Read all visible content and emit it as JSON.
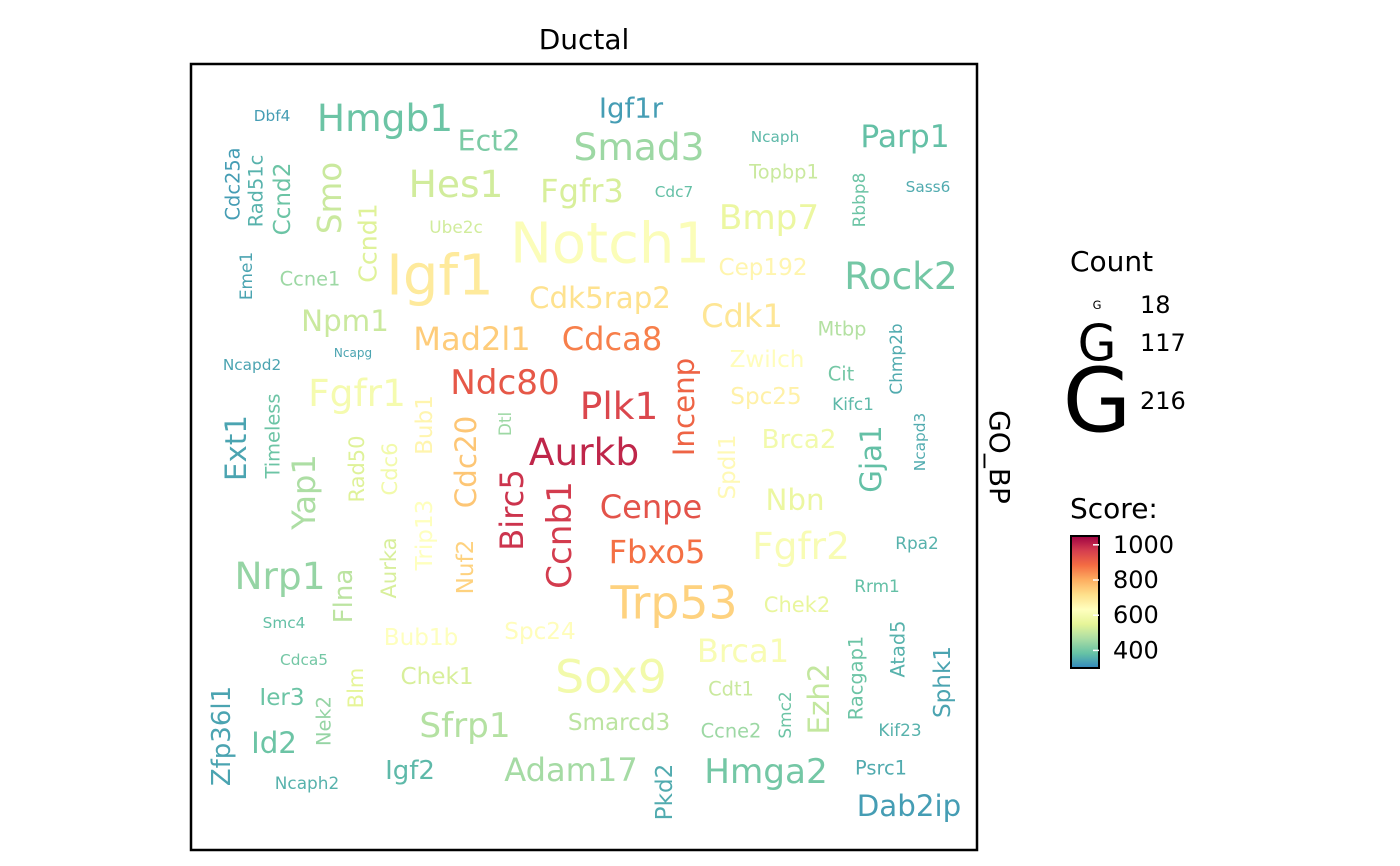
{
  "chart_data": {
    "type": "wordcloud",
    "panel_title": "Ductal",
    "strip_label": "GO_BP",
    "legend_count": {
      "title": "Count",
      "glyph": "G",
      "entries": [
        {
          "label": "18",
          "value": 18
        },
        {
          "label": "117",
          "value": 117
        },
        {
          "label": "216",
          "value": 216
        }
      ]
    },
    "legend_score": {
      "title": "Score:",
      "range": [
        300,
        1050
      ],
      "ticks": [
        {
          "label": "1000",
          "value": 1000
        },
        {
          "label": "800",
          "value": 800
        },
        {
          "label": "600",
          "value": 600
        },
        {
          "label": "400",
          "value": 400
        }
      ],
      "colors": [
        "#3288bd",
        "#66c2a5",
        "#abdda4",
        "#e6f598",
        "#ffffbf",
        "#fee08b",
        "#fdae61",
        "#f46d43",
        "#d53e4f",
        "#9e0142"
      ]
    },
    "words": [
      {
        "text": "Dbf4",
        "count": 26,
        "score": 330
      },
      {
        "text": "Hmgb1",
        "count": 80,
        "score": 390
      },
      {
        "text": "Igf1r",
        "count": 56,
        "score": 330
      },
      {
        "text": "Ect2",
        "count": 58,
        "score": 410
      },
      {
        "text": "Smad3",
        "count": 80,
        "score": 450
      },
      {
        "text": "Ncaph",
        "count": 26,
        "score": 370
      },
      {
        "text": "Parp1",
        "count": 65,
        "score": 380
      },
      {
        "text": "Cdc25a",
        "count": 36,
        "score": 330
      },
      {
        "text": "Rad51c",
        "count": 36,
        "score": 360
      },
      {
        "text": "Ccnd2",
        "count": 45,
        "score": 390
      },
      {
        "text": "Smo",
        "count": 68,
        "score": 510
      },
      {
        "text": "Hes1",
        "count": 80,
        "score": 520
      },
      {
        "text": "Fgfr3",
        "count": 67,
        "score": 530
      },
      {
        "text": "Cdc7",
        "count": 26,
        "score": 380
      },
      {
        "text": "Topbp1",
        "count": 36,
        "score": 510
      },
      {
        "text": "Sass6",
        "count": 26,
        "score": 350
      },
      {
        "text": "Ccnd1",
        "count": 50,
        "score": 540
      },
      {
        "text": "Rbbp8",
        "count": 30,
        "score": 390
      },
      {
        "text": "Bmp7",
        "count": 72,
        "score": 570
      },
      {
        "text": "Ube2c",
        "count": 30,
        "score": 520
      },
      {
        "text": "Notch1",
        "count": 125,
        "score": 620
      },
      {
        "text": "Eme1",
        "count": 30,
        "score": 340
      },
      {
        "text": "Igf1",
        "count": 125,
        "score": 690
      },
      {
        "text": "Cep192",
        "count": 45,
        "score": 660
      },
      {
        "text": "Rock2",
        "count": 80,
        "score": 400
      },
      {
        "text": "Ccne1",
        "count": 36,
        "score": 450
      },
      {
        "text": "Cdk5rap2",
        "count": 60,
        "score": 710
      },
      {
        "text": "Npm1",
        "count": 60,
        "score": 510
      },
      {
        "text": "Cdk1",
        "count": 67,
        "score": 700
      },
      {
        "text": "Mtbp",
        "count": 36,
        "score": 480
      },
      {
        "text": "Mad2l1",
        "count": 67,
        "score": 750
      },
      {
        "text": "Cdca8",
        "count": 67,
        "score": 860
      },
      {
        "text": "Ncapd2",
        "count": 26,
        "score": 340
      },
      {
        "text": "Ncapg",
        "count": 18,
        "score": 340
      },
      {
        "text": "Zwilch",
        "count": 45,
        "score": 640
      },
      {
        "text": "Chmp2b",
        "count": 30,
        "score": 350
      },
      {
        "text": "Cit",
        "count": 36,
        "score": 400
      },
      {
        "text": "Ndc80",
        "count": 72,
        "score": 920
      },
      {
        "text": "Fgfr1",
        "count": 80,
        "score": 600
      },
      {
        "text": "Incenp",
        "count": 60,
        "score": 900
      },
      {
        "text": "Plk1",
        "count": 80,
        "score": 950
      },
      {
        "text": "Spc25",
        "count": 45,
        "score": 670
      },
      {
        "text": "Kifc1",
        "count": 30,
        "score": 370
      },
      {
        "text": "Ext1",
        "count": 60,
        "score": 340
      },
      {
        "text": "Timeless",
        "count": 36,
        "score": 390
      },
      {
        "text": "Rad50",
        "count": 40,
        "score": 540
      },
      {
        "text": "Cdc6",
        "count": 40,
        "score": 590
      },
      {
        "text": "Trip13",
        "count": 45,
        "score": 630
      },
      {
        "text": "Bub1",
        "count": 45,
        "score": 660
      },
      {
        "text": "Cdc20",
        "count": 60,
        "score": 760
      },
      {
        "text": "Dtl",
        "count": 30,
        "score": 450
      },
      {
        "text": "Aurkb",
        "count": 80,
        "score": 1000
      },
      {
        "text": "Brca2",
        "count": 52,
        "score": 590
      },
      {
        "text": "Ncapd3",
        "count": 26,
        "score": 350
      },
      {
        "text": "Gja1",
        "count": 60,
        "score": 380
      },
      {
        "text": "Yap1",
        "count": 67,
        "score": 470
      },
      {
        "text": "Spdl1",
        "count": 45,
        "score": 650
      },
      {
        "text": "Nbn",
        "count": 60,
        "score": 570
      },
      {
        "text": "Birc5",
        "count": 67,
        "score": 980
      },
      {
        "text": "Cenpe",
        "count": 67,
        "score": 930
      },
      {
        "text": "Ccnb1",
        "count": 72,
        "score": 970
      },
      {
        "text": "Fgfr2",
        "count": 80,
        "score": 610
      },
      {
        "text": "Aurka",
        "count": 40,
        "score": 530
      },
      {
        "text": "Nuf2",
        "count": 45,
        "score": 740
      },
      {
        "text": "Fbxo5",
        "count": 67,
        "score": 880
      },
      {
        "text": "Rpa2",
        "count": 30,
        "score": 360
      },
      {
        "text": "Nrp1",
        "count": 80,
        "score": 440
      },
      {
        "text": "Trp53",
        "count": 100,
        "score": 740
      },
      {
        "text": "Rrm1",
        "count": 30,
        "score": 380
      },
      {
        "text": "Chek2",
        "count": 40,
        "score": 560
      },
      {
        "text": "Flna",
        "count": 52,
        "score": 490
      },
      {
        "text": "Smc4",
        "count": 26,
        "score": 380
      },
      {
        "text": "Spc24",
        "count": 45,
        "score": 640
      },
      {
        "text": "Bub1b",
        "count": 45,
        "score": 630
      },
      {
        "text": "Atad5",
        "count": 36,
        "score": 360
      },
      {
        "text": "Racgap1",
        "count": 36,
        "score": 390
      },
      {
        "text": "Sphk1",
        "count": 45,
        "score": 340
      },
      {
        "text": "Brca1",
        "count": 67,
        "score": 610
      },
      {
        "text": "Zfp36l1",
        "count": 52,
        "score": 340
      },
      {
        "text": "Cdca5",
        "count": 26,
        "score": 400
      },
      {
        "text": "Sox9",
        "count": 100,
        "score": 590
      },
      {
        "text": "Chek1",
        "count": 45,
        "score": 530
      },
      {
        "text": "Blm",
        "count": 40,
        "score": 550
      },
      {
        "text": "Cdt1",
        "count": 36,
        "score": 510
      },
      {
        "text": "Ezh2",
        "count": 60,
        "score": 500
      },
      {
        "text": "Ier3",
        "count": 45,
        "score": 390
      },
      {
        "text": "Nek2",
        "count": 36,
        "score": 440
      },
      {
        "text": "Smarcd3",
        "count": 45,
        "score": 490
      },
      {
        "text": "Smc2",
        "count": 30,
        "score": 390
      },
      {
        "text": "Sfrp1",
        "count": 72,
        "score": 480
      },
      {
        "text": "Ccne2",
        "count": 36,
        "score": 450
      },
      {
        "text": "Kif23",
        "count": 30,
        "score": 360
      },
      {
        "text": "Id2",
        "count": 60,
        "score": 390
      },
      {
        "text": "Adam17",
        "count": 67,
        "score": 460
      },
      {
        "text": "Hmga2",
        "count": 72,
        "score": 400
      },
      {
        "text": "Igf2",
        "count": 52,
        "score": 370
      },
      {
        "text": "Psrc1",
        "count": 36,
        "score": 350
      },
      {
        "text": "Pkd2",
        "count": 45,
        "score": 350
      },
      {
        "text": "Ncaph2",
        "count": 30,
        "score": 360
      },
      {
        "text": "Dab2ip",
        "count": 60,
        "score": 330
      }
    ]
  }
}
